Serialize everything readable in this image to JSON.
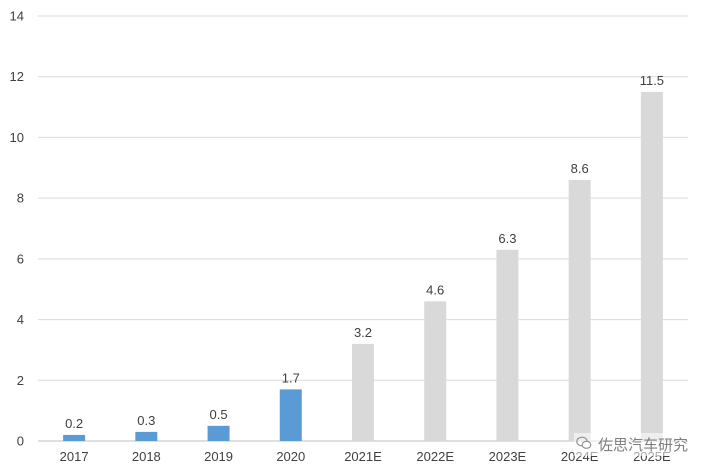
{
  "chart_data": {
    "type": "bar",
    "categories": [
      "2017",
      "2018",
      "2019",
      "2020",
      "2021E",
      "2022E",
      "2023E",
      "2024E",
      "2025E"
    ],
    "values": [
      0.2,
      0.3,
      0.5,
      1.7,
      3.2,
      4.6,
      6.3,
      8.6,
      11.5
    ],
    "data_labels": [
      "0.2",
      "0.3",
      "0.5",
      "1.7",
      "3.2",
      "4.6",
      "6.3",
      "8.6",
      "11.5"
    ],
    "actual_color": "#5B9BD5",
    "estimate_color": "#D9D9D9",
    "ylim": [
      0,
      14
    ],
    "yticks": [
      0,
      2,
      4,
      6,
      8,
      10,
      12,
      14
    ],
    "grid": true,
    "title": "",
    "xlabel": "",
    "ylabel": ""
  },
  "watermark": {
    "text": "佐思汽车研究",
    "icon": "wechat-icon"
  }
}
